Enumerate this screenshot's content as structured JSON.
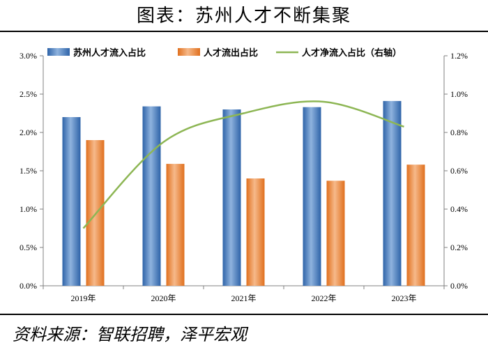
{
  "page": {
    "title": "图表：苏州人才不断集聚",
    "source": "资料来源：智联招聘，泽平宏观"
  },
  "chart_data": {
    "type": "bar",
    "categories": [
      "2019年",
      "2020年",
      "2021年",
      "2022年",
      "2023年"
    ],
    "series": [
      {
        "name": "苏州人才流入占比",
        "type": "bar",
        "axis": "left",
        "color": "#4a7fc1",
        "values": [
          2.2,
          2.34,
          2.3,
          2.33,
          2.41
        ]
      },
      {
        "name": "人才流出占比",
        "type": "bar",
        "axis": "left",
        "color": "#ed7d31",
        "values": [
          1.9,
          1.59,
          1.4,
          1.37,
          1.58
        ]
      },
      {
        "name": "人才净流入占比（右轴）",
        "type": "line",
        "axis": "right",
        "color": "#8db654",
        "values": [
          0.3,
          0.75,
          0.9,
          0.96,
          0.83
        ]
      }
    ],
    "y_left": {
      "ylim": [
        0,
        3.0
      ],
      "ticks": [
        "0.0%",
        "0.5%",
        "1.0%",
        "1.5%",
        "2.0%",
        "2.5%",
        "3.0%"
      ]
    },
    "y_right": {
      "ylim": [
        0,
        1.2
      ],
      "ticks": [
        "0.0%",
        "0.2%",
        "0.4%",
        "0.6%",
        "0.8%",
        "1.0%",
        "1.2%"
      ]
    },
    "legend_position": "top",
    "grid": false
  }
}
